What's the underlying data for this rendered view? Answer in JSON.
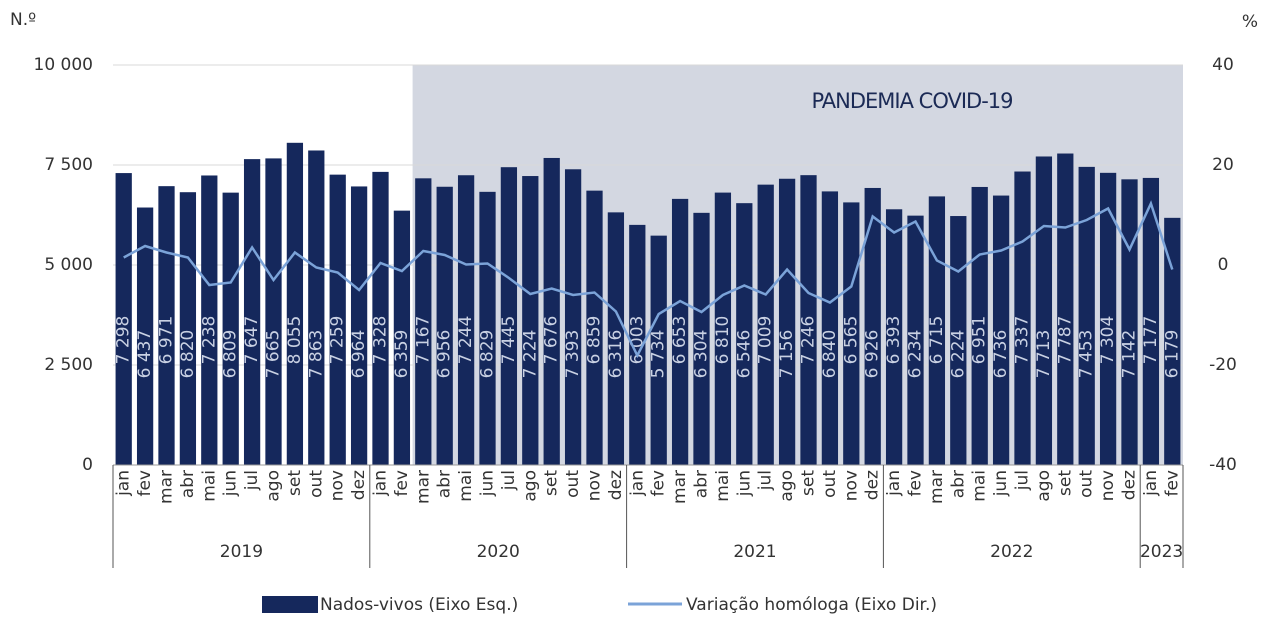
{
  "chart_data": {
    "type": "bar_line",
    "y_axis_label": "N.º",
    "y2_axis_label": "%",
    "annotation": "PANDEMIA COVID-19",
    "shaded_region": {
      "from_index": 14,
      "color": "#d3d7e1"
    },
    "categories": [
      "jan",
      "fev",
      "mar",
      "abr",
      "mai",
      "jun",
      "jul",
      "ago",
      "set",
      "out",
      "nov",
      "dez",
      "jan",
      "fev",
      "mar",
      "abr",
      "mai",
      "jun",
      "jul",
      "ago",
      "set",
      "out",
      "nov",
      "dez",
      "jan",
      "fev",
      "mar",
      "abr",
      "mai",
      "jun",
      "jul",
      "ago",
      "set",
      "out",
      "nov",
      "dez",
      "jan",
      "fev",
      "mar",
      "abr",
      "mai",
      "jun",
      "jul",
      "ago",
      "set",
      "out",
      "nov",
      "dez",
      "jan",
      "fev"
    ],
    "years": [
      {
        "label": "2019",
        "span": 12
      },
      {
        "label": "2020",
        "span": 12
      },
      {
        "label": "2021",
        "span": 12
      },
      {
        "label": "2022",
        "span": 12
      },
      {
        "label": "2023",
        "span": 2
      }
    ],
    "series": [
      {
        "name": "Nados-vivos (Eixo Esq.)",
        "color": "#15285c",
        "axis": "y",
        "values": [
          7298,
          6437,
          6971,
          6820,
          7238,
          6809,
          7647,
          7665,
          8055,
          7863,
          7259,
          6964,
          7328,
          6359,
          7167,
          6956,
          7244,
          6829,
          7445,
          7224,
          7676,
          7393,
          6859,
          6316,
          6003,
          5734,
          6653,
          6304,
          6810,
          6546,
          7009,
          7156,
          7246,
          6840,
          6565,
          6926,
          6393,
          6234,
          6715,
          6224,
          6951,
          6736,
          7337,
          7713,
          7787,
          7453,
          7304,
          7142,
          7177,
          6179
        ],
        "value_labels": [
          "7 298",
          "6 437",
          "6 971",
          "6 820",
          "7 238",
          "6 809",
          "7 647",
          "7 665",
          "8 055",
          "7 863",
          "7 259",
          "6 964",
          "7 328",
          "6 359",
          "7 167",
          "6 956",
          "7 244",
          "6 829",
          "7 445",
          "7 224",
          "7 676",
          "7 393",
          "6 859",
          "6 316",
          "6 003",
          "5 734",
          "6 653",
          "6 304",
          "6 810",
          "6 546",
          "7 009",
          "7 156",
          "7 246",
          "6 840",
          "6 565",
          "6 926",
          "6 393",
          "6 234",
          "6 715",
          "6 224",
          "6 951",
          "6 736",
          "7 337",
          "7 713",
          "7 787",
          "7 453",
          "7 304",
          "7 142",
          "7 177",
          "6 179"
        ]
      },
      {
        "name": "Variação homóloga (Eixo Dir.)",
        "color": "#7ba3d8",
        "axis": "y2",
        "values": [
          1.5,
          3.8,
          2.5,
          1.5,
          -4,
          -3.5,
          3.5,
          -3,
          2.5,
          -0.5,
          -1.5,
          -5,
          0.4,
          -1.2,
          2.8,
          2,
          0.1,
          0.3,
          -2.6,
          -5.8,
          -4.7,
          -6,
          -5.5,
          -9.3,
          -18.1,
          -9.8,
          -7.2,
          -9.4,
          -6,
          -4.1,
          -5.9,
          -0.9,
          -5.6,
          -7.5,
          -4.3,
          9.7,
          6.5,
          8.7,
          0.9,
          -1.3,
          2.1,
          2.9,
          4.7,
          7.8,
          7.5,
          9,
          11.3,
          3.1,
          12.3,
          -0.9
        ]
      }
    ],
    "ylim": [
      0,
      10000
    ],
    "yticks": [
      0,
      {
        "value": 2500,
        "label": "2 500"
      },
      {
        "value": 5000,
        "label": "5 000"
      },
      {
        "value": 7500,
        "label": "7 500"
      },
      {
        "value": 10000,
        "label": "10 000"
      }
    ],
    "y2lim": [
      -40,
      40
    ],
    "y2ticks": [
      -40,
      -20,
      0,
      20,
      40
    ],
    "grid": true
  }
}
